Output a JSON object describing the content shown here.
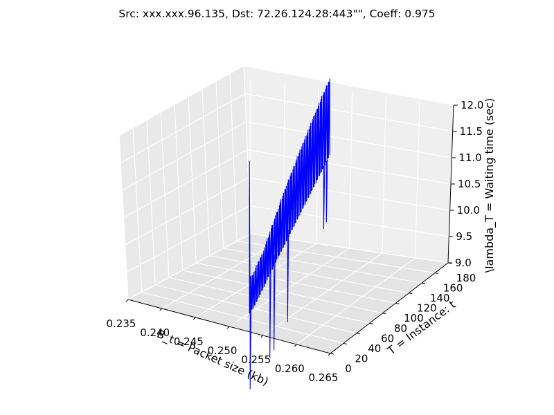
{
  "chart_data": {
    "type": "line",
    "projection": "3d",
    "title": "Src: xxx.xxx.96.135, Dst: 72.26.124.28:443\"\", Coeff: 0.975",
    "xlabel": "B_t = Packet size (kb)",
    "ylabel": "T = Instance: t",
    "zlabel": "\\lambda_T = Waiting time (sec)",
    "xlim": [
      0.235,
      0.265
    ],
    "ylim": [
      0,
      180
    ],
    "zlim": [
      9.0,
      12.0
    ],
    "x_ticks": [
      "0.235",
      "0.240",
      "0.245",
      "0.250",
      "0.255",
      "0.260",
      "0.265"
    ],
    "y_ticks": [
      "0",
      "20",
      "40",
      "60",
      "80",
      "100",
      "120",
      "140",
      "160",
      "180"
    ],
    "z_ticks": [
      "9.0",
      "9.5",
      "10.0",
      "10.5",
      "11.0",
      "11.5",
      "12.0"
    ],
    "grid": true,
    "line_color": "#0000ff",
    "series": [
      {
        "x_packet_size_kb": [
          0.253,
          0.253,
          0.253,
          0.253,
          0.253,
          0.253,
          0.253,
          0.253,
          0.253,
          0.253,
          0.253,
          0.253,
          0.253,
          0.253,
          0.253,
          0.253,
          0.253,
          0.253,
          0.253,
          0.253,
          0.253,
          0.253,
          0.253,
          0.253,
          0.253,
          0.253,
          0.253,
          0.253,
          0.253,
          0.253,
          0.253,
          0.253,
          0.253,
          0.253,
          0.253,
          0.253,
          0.253,
          0.253,
          0.253,
          0.253,
          0.253,
          0.253,
          0.253,
          0.253,
          0.253,
          0.253,
          0.253,
          0.253,
          0.253,
          0.253,
          0.253,
          0.253,
          0.253,
          0.253,
          0.253,
          0.253,
          0.253,
          0.253,
          0.253,
          0.253,
          0.253,
          0.253,
          0.253,
          0.253,
          0.253,
          0.253,
          0.253,
          0.253,
          0.253,
          0.253,
          0.253,
          0.253,
          0.253,
          0.253,
          0.253,
          0.253,
          0.253,
          0.253,
          0.253,
          0.253,
          0.253,
          0.253,
          0.253,
          0.253,
          0.253,
          0.253,
          0.253,
          0.253,
          0.253,
          0.253,
          0.253,
          0.253,
          0.253,
          0.253,
          0.253,
          0.253,
          0.253,
          0.253,
          0.253,
          0.253,
          0.253,
          0.253,
          0.253,
          0.253,
          0.253,
          0.253,
          0.253,
          0.253,
          0.253,
          0.253,
          0.253,
          0.253,
          0.253,
          0.253,
          0.253,
          0.253,
          0.253,
          0.253,
          0.253,
          0.253,
          0.253,
          0.253,
          0.253,
          0.253,
          0.253,
          0.253,
          0.253,
          0.253,
          0.253,
          0.253,
          0.253,
          0.253,
          0.253,
          0.253,
          0.253,
          0.253,
          0.253,
          0.253,
          0.253,
          0.253,
          0.253,
          0.253,
          0.253,
          0.253,
          0.253,
          0.253,
          0.253,
          0.253,
          0.253,
          0.253,
          0.253,
          0.253,
          0.253,
          0.253,
          0.253,
          0.253,
          0.253,
          0.253,
          0.253,
          0.253,
          0.253,
          0.253,
          0.253,
          0.253,
          0.253,
          0.253,
          0.253,
          0.253,
          0.253,
          0.253,
          0.253,
          0.253,
          0.253,
          0.253,
          0.253,
          0.253,
          0.253,
          0.253,
          0.253,
          0.253,
          0.253,
          0.253
        ],
        "y_instance": [
          0,
          0,
          1,
          1,
          2,
          2,
          3,
          4,
          4,
          5,
          6,
          6,
          7,
          8,
          8,
          9,
          10,
          10,
          11,
          12,
          12,
          13,
          14,
          14,
          15,
          16,
          16,
          17,
          18,
          18,
          19,
          20,
          20,
          21,
          22,
          22,
          23,
          24,
          24,
          25,
          26,
          26,
          27,
          28,
          28,
          29,
          30,
          30,
          31,
          32,
          32,
          33,
          34,
          34,
          35,
          36,
          36,
          37,
          38,
          38,
          39,
          40,
          40,
          41,
          42,
          42,
          43,
          44,
          44,
          45,
          46,
          46,
          47,
          48,
          48,
          49,
          50,
          50,
          51,
          52,
          52,
          53,
          54,
          54,
          55,
          56,
          56,
          57,
          58,
          58,
          59,
          60,
          60,
          61,
          62,
          62,
          63,
          64,
          64,
          65,
          66,
          66,
          67,
          68,
          68,
          69,
          70,
          70,
          71,
          72,
          72,
          73,
          74,
          74,
          75,
          76,
          76,
          77,
          78,
          78,
          79,
          80,
          80,
          81,
          82,
          82,
          83,
          84,
          84,
          85,
          86,
          86,
          87,
          88,
          88,
          89,
          90,
          90,
          91,
          92,
          92,
          93,
          94,
          94,
          95,
          96,
          96,
          97,
          98,
          98,
          99,
          100,
          100,
          101,
          102,
          102,
          103,
          104,
          104,
          105,
          106,
          106,
          107,
          108,
          108,
          109,
          110,
          110,
          111,
          112,
          112,
          113,
          114,
          114,
          115,
          116,
          116,
          117,
          118,
          118
        ],
        "z_waiting_time_sec": [
          9.35,
          12.25,
          9.35,
          10.05,
          9.35,
          10.05,
          9.4,
          10.05,
          9.4,
          10.05,
          9.4,
          10.1,
          9.45,
          10.1,
          9.45,
          10.15,
          9.5,
          10.2,
          9.5,
          10.2,
          9.55,
          10.25,
          9.55,
          10.25,
          9.6,
          10.3,
          9.6,
          10.3,
          9.65,
          10.35,
          9.65,
          10.35,
          9.7,
          10.4,
          9.7,
          10.45,
          9.75,
          10.5,
          9.75,
          10.55,
          9.8,
          10.6,
          9.85,
          10.6,
          9.85,
          10.65,
          9.9,
          10.7,
          9.9,
          10.75,
          9.95,
          10.8,
          9.95,
          10.8,
          10.0,
          10.85,
          10.0,
          10.9,
          10.05,
          10.95,
          10.05,
          11.0,
          10.1,
          11.0,
          10.1,
          11.05,
          10.15,
          11.1,
          10.15,
          11.15,
          10.2,
          11.2,
          10.2,
          11.2,
          10.25,
          11.25,
          10.25,
          11.3,
          10.3,
          11.35,
          10.3,
          11.35,
          10.35,
          11.4,
          10.35,
          11.45,
          10.4,
          11.5,
          10.4,
          11.5,
          10.45,
          11.55,
          10.45,
          11.6,
          10.5,
          11.6,
          10.5,
          11.65,
          10.55,
          11.7,
          10.55,
          11.7,
          10.6,
          11.75,
          10.6,
          11.8,
          10.65,
          11.85,
          10.65,
          11.85,
          10.7,
          11.9,
          10.7,
          11.95,
          10.75,
          11.95,
          10.75,
          12.0,
          10.8,
          12.05,
          10.8,
          12.05,
          10.85,
          12.1,
          10.85,
          12.15,
          10.9,
          12.15,
          10.9,
          12.2,
          10.95,
          12.25,
          10.95,
          12.25,
          11.0,
          12.3,
          11.0,
          12.35,
          11.05,
          12.35,
          11.05,
          12.4,
          11.1,
          12.45,
          11.1,
          12.45,
          11.15,
          12.5,
          11.15,
          12.55,
          11.2,
          12.55,
          11.2,
          12.6,
          11.25,
          12.65,
          11.25,
          12.65,
          11.3,
          12.7,
          11.3,
          12.75,
          11.35,
          12.75,
          11.35,
          12.8,
          11.4,
          12.8,
          11.4,
          12.85,
          11.45,
          12.9,
          11.45,
          12.9,
          11.5,
          12.95,
          11.5,
          12.95,
          11.55,
          13.0,
          11.55,
          13.0
        ]
      }
    ],
    "dips": [
      {
        "y_instance": 1,
        "z_waiting_time_sec": 7.9
      },
      {
        "y_instance": 30,
        "z_waiting_time_sec": 8.3
      },
      {
        "y_instance": 36,
        "z_waiting_time_sec": 8.4
      },
      {
        "y_instance": 56,
        "z_waiting_time_sec": 8.8
      },
      {
        "y_instance": 109,
        "z_waiting_time_sec": 10.2
      },
      {
        "y_instance": 113,
        "z_waiting_time_sec": 10.3
      }
    ]
  }
}
